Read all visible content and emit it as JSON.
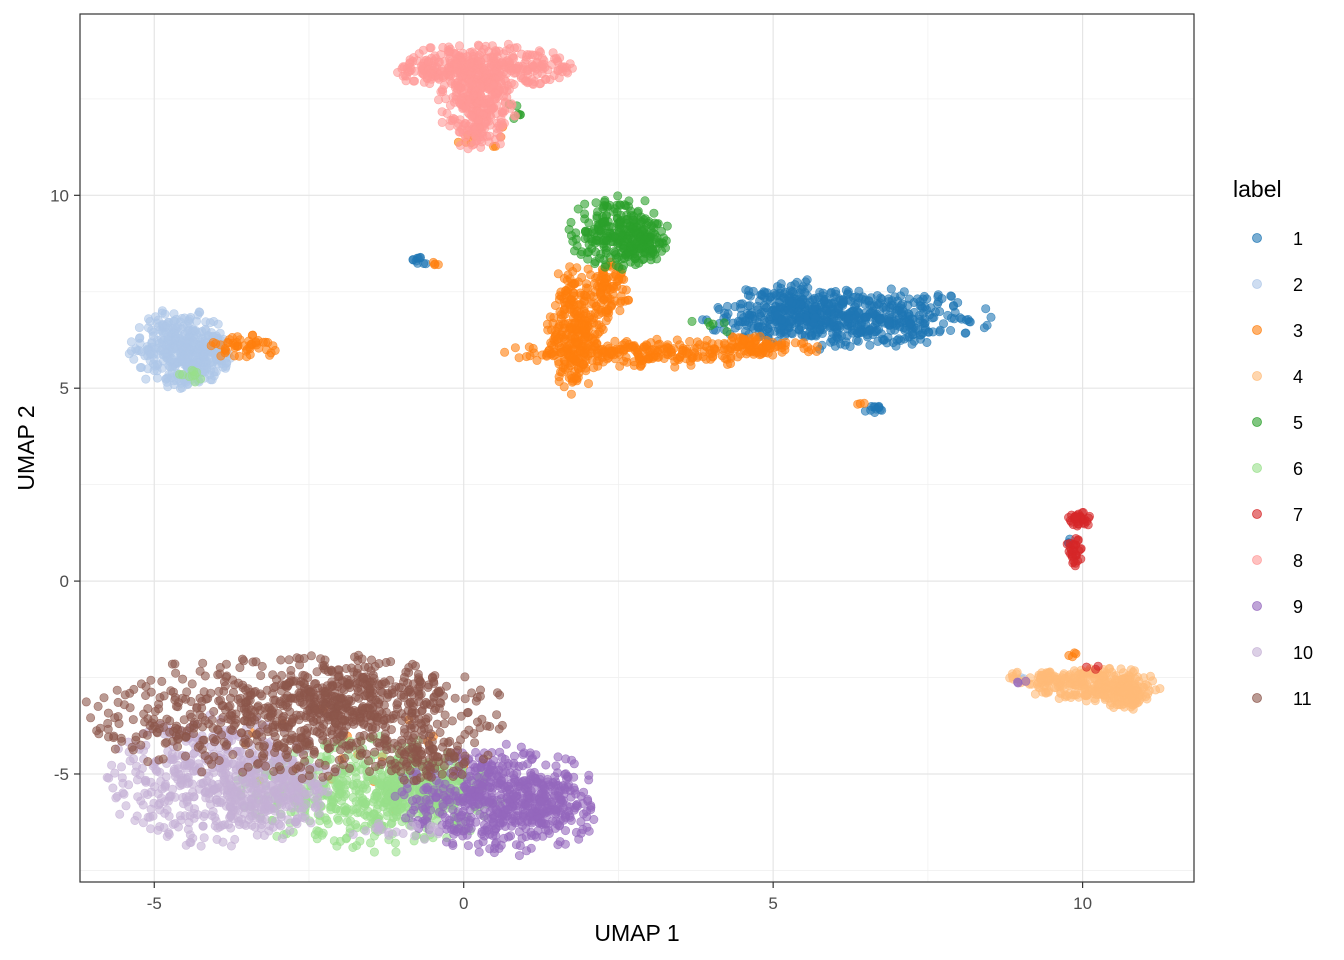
{
  "chart_data": {
    "type": "scatter",
    "xlabel": "UMAP 1",
    "ylabel": "UMAP 2",
    "xlim": [
      -6.2,
      11.8
    ],
    "ylim": [
      -7.8,
      14.7
    ],
    "x_ticks": [
      -5,
      0,
      5,
      10
    ],
    "y_ticks": [
      -5,
      0,
      5,
      10
    ],
    "x_tick_labels": [
      "-5",
      "0",
      "5",
      "10"
    ],
    "y_tick_labels": [
      "-5",
      "0",
      "5",
      "10"
    ],
    "grid": true,
    "legend": {
      "title": "label",
      "placement": "right"
    },
    "series": [
      {
        "name": "1",
        "color": "#1f77b4",
        "clusters": [
          {
            "cx": 6.2,
            "cy": 6.8,
            "rx": 1.3,
            "ry": 0.45,
            "n": 520
          },
          {
            "cx": 5.3,
            "cy": 7.1,
            "rx": 0.5,
            "ry": 0.45,
            "n": 160
          },
          {
            "cx": -0.65,
            "cy": 8.3,
            "rx": 0.1,
            "ry": 0.08,
            "n": 10
          },
          {
            "cx": 6.6,
            "cy": 4.45,
            "rx": 0.12,
            "ry": 0.08,
            "n": 12
          },
          {
            "cx": 9.8,
            "cy": 1.0,
            "rx": 0.05,
            "ry": 0.1,
            "n": 3
          }
        ]
      },
      {
        "name": "2",
        "color": "#aec7e8",
        "clusters": [
          {
            "cx": -4.6,
            "cy": 6.0,
            "rx": 0.45,
            "ry": 0.6,
            "n": 300
          },
          {
            "cx": -4.3,
            "cy": 5.8,
            "rx": 0.3,
            "ry": 0.4,
            "n": 120
          },
          {
            "cx": 9.0,
            "cy": -2.5,
            "rx": 0.1,
            "ry": 0.05,
            "n": 4
          }
        ]
      },
      {
        "name": "3",
        "color": "#ff7f0e",
        "clusters": [
          {
            "cx": 1.8,
            "cy": 6.5,
            "rx": 0.25,
            "ry": 1.0,
            "n": 260
          },
          {
            "cx": 2.3,
            "cy": 7.4,
            "rx": 0.2,
            "ry": 0.5,
            "n": 90
          },
          {
            "cx": 3.0,
            "cy": 5.9,
            "rx": 1.3,
            "ry": 0.2,
            "n": 220
          },
          {
            "cx": 4.8,
            "cy": 6.1,
            "rx": 0.6,
            "ry": 0.15,
            "n": 90
          },
          {
            "cx": -3.6,
            "cy": 6.1,
            "rx": 0.35,
            "ry": 0.2,
            "n": 50
          },
          {
            "cx": 0.3,
            "cy": 11.5,
            "rx": 0.3,
            "ry": 0.2,
            "n": 10
          },
          {
            "cx": -0.45,
            "cy": 8.2,
            "rx": 0.06,
            "ry": 0.04,
            "n": 4
          },
          {
            "cx": 6.4,
            "cy": 4.6,
            "rx": 0.05,
            "ry": 0.03,
            "n": 3
          },
          {
            "cx": 9.8,
            "cy": -1.9,
            "rx": 0.1,
            "ry": 0.05,
            "n": 4
          },
          {
            "cx": -1.5,
            "cy": -4.5,
            "rx": 1.2,
            "ry": 1.0,
            "n": 18
          }
        ]
      },
      {
        "name": "4",
        "color": "#ffbb78",
        "clusters": [
          {
            "cx": 10.2,
            "cy": -2.7,
            "rx": 0.6,
            "ry": 0.28,
            "n": 240
          },
          {
            "cx": 10.7,
            "cy": -3.0,
            "rx": 0.22,
            "ry": 0.22,
            "n": 80
          },
          {
            "cx": 9.4,
            "cy": -2.5,
            "rx": 0.4,
            "ry": 0.1,
            "n": 50
          }
        ]
      },
      {
        "name": "5",
        "color": "#2ca02c",
        "clusters": [
          {
            "cx": 2.5,
            "cy": 9.05,
            "rx": 0.45,
            "ry": 0.55,
            "n": 230
          },
          {
            "cx": 2.9,
            "cy": 8.7,
            "rx": 0.25,
            "ry": 0.3,
            "n": 80
          },
          {
            "cx": 0.8,
            "cy": 12.1,
            "rx": 0.08,
            "ry": 0.2,
            "n": 6
          },
          {
            "cx": 4.2,
            "cy": 6.6,
            "rx": 0.4,
            "ry": 0.15,
            "n": 6
          }
        ]
      },
      {
        "name": "6",
        "color": "#98df8a",
        "clusters": [
          {
            "cx": -1.5,
            "cy": -5.5,
            "rx": 1.2,
            "ry": 0.85,
            "n": 520
          },
          {
            "cx": -0.6,
            "cy": -5.4,
            "rx": 0.5,
            "ry": 0.5,
            "n": 140
          },
          {
            "cx": -4.4,
            "cy": 5.3,
            "rx": 0.15,
            "ry": 0.1,
            "n": 10
          }
        ]
      },
      {
        "name": "7",
        "color": "#d62728",
        "clusters": [
          {
            "cx": 9.95,
            "cy": 1.6,
            "rx": 0.12,
            "ry": 0.15,
            "n": 30
          },
          {
            "cx": 9.85,
            "cy": 0.7,
            "rx": 0.08,
            "ry": 0.25,
            "n": 30
          },
          {
            "cx": 10.2,
            "cy": -2.2,
            "rx": 0.1,
            "ry": 0.05,
            "n": 3
          }
        ]
      },
      {
        "name": "8",
        "color": "#ff9896",
        "clusters": [
          {
            "cx": 0.3,
            "cy": 13.3,
            "rx": 0.8,
            "ry": 0.35,
            "n": 400
          },
          {
            "cx": 0.2,
            "cy": 12.2,
            "rx": 0.35,
            "ry": 0.6,
            "n": 240
          }
        ]
      },
      {
        "name": "9",
        "color": "#9467bd",
        "clusters": [
          {
            "cx": 0.6,
            "cy": -5.7,
            "rx": 0.95,
            "ry": 0.8,
            "n": 500
          },
          {
            "cx": 1.2,
            "cy": -5.8,
            "rx": 0.45,
            "ry": 0.55,
            "n": 120
          },
          {
            "cx": 9.0,
            "cy": -2.6,
            "rx": 0.06,
            "ry": 0.05,
            "n": 3
          }
        ]
      },
      {
        "name": "10",
        "color": "#c5b0d5",
        "clusters": [
          {
            "cx": -3.9,
            "cy": -5.2,
            "rx": 1.05,
            "ry": 0.95,
            "n": 520
          },
          {
            "cx": -3.1,
            "cy": -5.6,
            "rx": 0.5,
            "ry": 0.6,
            "n": 120
          },
          {
            "cx": -1.0,
            "cy": -6.5,
            "rx": 0.6,
            "ry": 0.15,
            "n": 20
          }
        ]
      },
      {
        "name": "11",
        "color": "#8c564b",
        "clusters": [
          {
            "cx": -2.7,
            "cy": -3.5,
            "rx": 1.9,
            "ry": 0.9,
            "n": 720
          },
          {
            "cx": -1.7,
            "cy": -2.9,
            "rx": 0.8,
            "ry": 0.55,
            "n": 180
          },
          {
            "cx": -0.7,
            "cy": -4.5,
            "rx": 0.6,
            "ry": 0.45,
            "n": 90
          }
        ]
      }
    ]
  }
}
